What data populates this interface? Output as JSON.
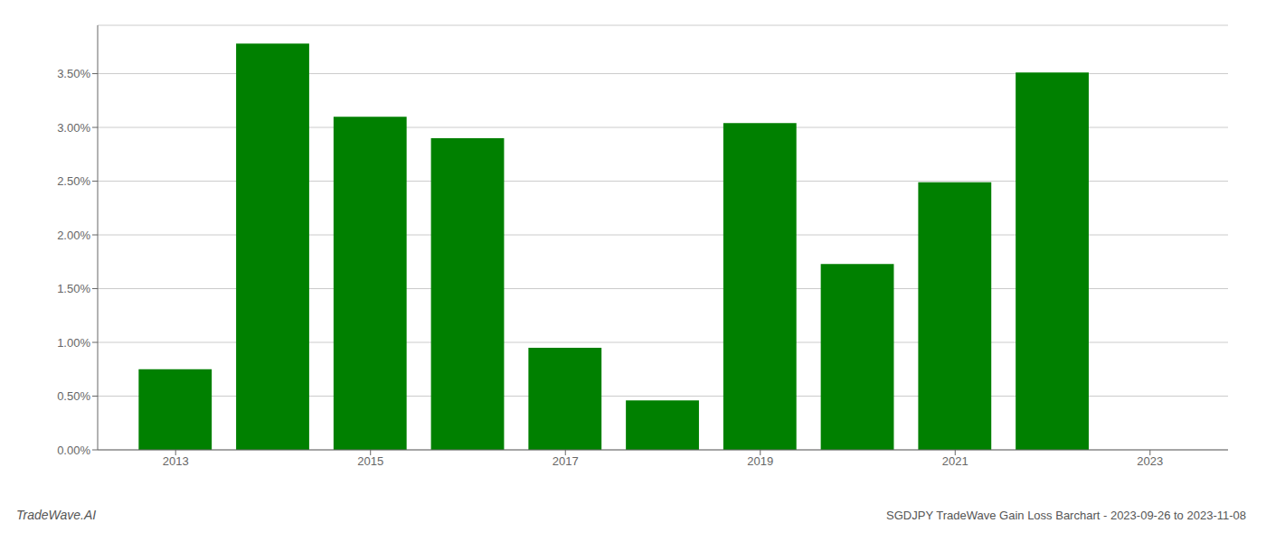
{
  "chart_data": {
    "type": "bar",
    "title": "SGDJPY TradeWave Gain Loss Barchart - 2023-09-26 to 2023-11-08",
    "annotations": [
      "TradeWave.AI"
    ],
    "x": [
      2013,
      2014,
      2015,
      2016,
      2017,
      2018,
      2019,
      2020,
      2021,
      2022
    ],
    "values": [
      0.0075,
      0.0378,
      0.031,
      0.029,
      0.0095,
      0.0046,
      0.0304,
      0.0173,
      0.0249,
      0.0351
    ],
    "color": "#008000",
    "xlim": [
      2012.2,
      2023.8
    ],
    "xticks": [
      2013,
      2015,
      2017,
      2019,
      2021,
      2023
    ],
    "ylim": [
      0.0,
      0.0395
    ],
    "yticks": [
      {
        "value": 0,
        "label": "0.00%"
      },
      {
        "value": 0.005,
        "label": "0.50%"
      },
      {
        "value": 0.01,
        "label": "1.00%"
      },
      {
        "value": 0.015,
        "label": "1.50%"
      },
      {
        "value": 0.02,
        "label": "2.00%"
      },
      {
        "value": 0.025,
        "label": "2.50%"
      },
      {
        "value": 0.03,
        "label": "3.00%"
      },
      {
        "value": 0.035,
        "label": "3.50%"
      }
    ],
    "grid": true
  }
}
